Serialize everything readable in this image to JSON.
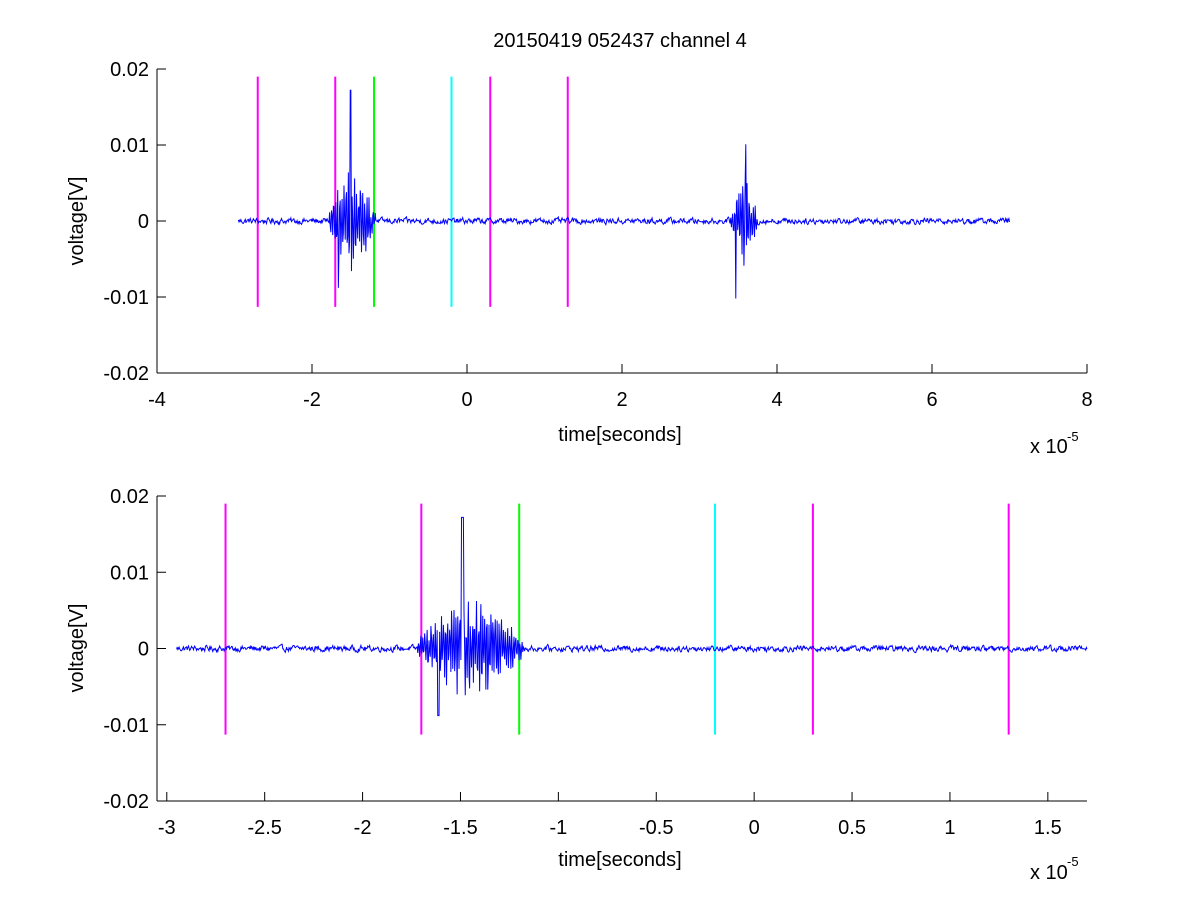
{
  "chart_data": [
    {
      "type": "line",
      "title": "20150419 052437 channel 4",
      "xlabel": "time[seconds]",
      "ylabel": "voltage[V]",
      "x_exponent_base": "x 10",
      "x_exponent_power": "-5",
      "xlim": [
        -4,
        8
      ],
      "ylim": [
        -0.02,
        0.02
      ],
      "xticks": [
        -4,
        -2,
        0,
        2,
        4,
        6,
        8
      ],
      "xtick_labels": [
        "-4",
        "-2",
        "0",
        "2",
        "4",
        "6",
        "8"
      ],
      "yticks": [
        -0.02,
        -0.01,
        0,
        0.01,
        0.02
      ],
      "ytick_labels": [
        "-0.02",
        "-0.01",
        "0",
        "0.01",
        "0.02"
      ],
      "grid": false,
      "series": [
        {
          "color": "#0000ff",
          "x_range": [
            -2.95,
            7.0
          ],
          "baseline": 0,
          "noise_amplitude": 0.0004,
          "bursts": [
            {
              "start": -1.78,
              "end": -1.18,
              "peak_max": 0.0172,
              "peak_min": -0.0088,
              "peak_at": -1.5
            },
            {
              "start": 3.4,
              "end": 3.75,
              "peak_max": 0.0101,
              "peak_min": -0.0102,
              "peak_at": 3.6
            }
          ]
        }
      ],
      "markers": [
        {
          "x": -2.7,
          "color": "#ff00ff",
          "y_range": [
            -0.0113,
            0.019
          ]
        },
        {
          "x": -1.7,
          "color": "#ff00ff",
          "y_range": [
            -0.0113,
            0.019
          ]
        },
        {
          "x": -1.2,
          "color": "#00ff00",
          "y_range": [
            -0.0113,
            0.019
          ]
        },
        {
          "x": -0.2,
          "color": "#00ffff",
          "y_range": [
            -0.0113,
            0.019
          ]
        },
        {
          "x": 0.3,
          "color": "#ff00ff",
          "y_range": [
            -0.0113,
            0.019
          ]
        },
        {
          "x": 1.3,
          "color": "#ff00ff",
          "y_range": [
            -0.0113,
            0.019
          ]
        }
      ]
    },
    {
      "type": "line",
      "title": "",
      "xlabel": "time[seconds]",
      "ylabel": "voltage[V]",
      "x_exponent_base": "x 10",
      "x_exponent_power": "-5",
      "xlim": [
        -3.05,
        1.7
      ],
      "ylim": [
        -0.02,
        0.02
      ],
      "xticks": [
        -3,
        -2.5,
        -2,
        -1.5,
        -1,
        -0.5,
        0,
        0.5,
        1,
        1.5
      ],
      "xtick_labels": [
        "-3",
        "-2.5",
        "-2",
        "-1.5",
        "-1",
        "-0.5",
        "0",
        "0.5",
        "1",
        "1.5"
      ],
      "yticks": [
        -0.02,
        -0.01,
        0,
        0.01,
        0.02
      ],
      "ytick_labels": [
        "-0.02",
        "-0.01",
        "0",
        "0.01",
        "0.02"
      ],
      "grid": false,
      "series": [
        {
          "color": "#0000ff",
          "x_range": [
            -2.95,
            1.7
          ],
          "baseline": 0,
          "noise_amplitude": 0.0004,
          "bursts": [
            {
              "start": -1.72,
              "end": -1.18,
              "peak_max": 0.0172,
              "peak_min": -0.0088,
              "peak_at": -1.49
            }
          ]
        }
      ],
      "markers": [
        {
          "x": -2.7,
          "color": "#ff00ff",
          "y_range": [
            -0.0113,
            0.019
          ]
        },
        {
          "x": -1.7,
          "color": "#ff00ff",
          "y_range": [
            -0.0113,
            0.019
          ]
        },
        {
          "x": -1.2,
          "color": "#00ff00",
          "y_range": [
            -0.0113,
            0.019
          ]
        },
        {
          "x": -0.2,
          "color": "#00ffff",
          "y_range": [
            -0.0113,
            0.019
          ]
        },
        {
          "x": 0.3,
          "color": "#ff00ff",
          "y_range": [
            -0.0113,
            0.019
          ]
        },
        {
          "x": 1.3,
          "color": "#ff00ff",
          "y_range": [
            -0.0113,
            0.019
          ]
        }
      ]
    }
  ]
}
